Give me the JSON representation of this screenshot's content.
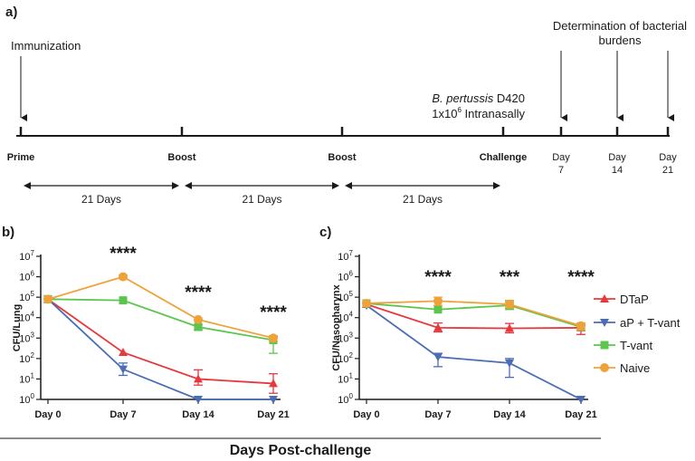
{
  "panel_a": {
    "label": "a)",
    "immunization": "Immunization",
    "determination": "Determination of bacterial",
    "determination2": "burdens",
    "species": "B. pertussis",
    "strain": " D420",
    "dose_prefix": "1x10",
    "dose_exp": "6",
    "dose_suffix": " Intranasally",
    "events": [
      {
        "label": "Prime"
      },
      {
        "label": "Boost"
      },
      {
        "label": "Boost"
      },
      {
        "label": "Challenge"
      }
    ],
    "days": [
      {
        "line1": "Day",
        "line2": "7"
      },
      {
        "line1": "Day",
        "line2": "14"
      },
      {
        "line1": "Day",
        "line2": "21"
      }
    ],
    "intervals": [
      "21 Days",
      "21 Days",
      "21 Days"
    ]
  },
  "shared_xlabel": "Days Post-challenge",
  "legend": [
    {
      "name": "DTaP",
      "color": "#e8383d",
      "marker": "triangle-up"
    },
    {
      "name": "aP + T-vant",
      "color": "#4a6db5",
      "marker": "triangle-down"
    },
    {
      "name": "T-vant",
      "color": "#5cc54e",
      "marker": "square"
    },
    {
      "name": "Naive",
      "color": "#f0a23a",
      "marker": "circle"
    }
  ],
  "chart_data": [
    {
      "panel": "b)",
      "type": "line",
      "ylabel": "CFU/Lung",
      "yscale": "log10",
      "ylim_exp": [
        0,
        7
      ],
      "categories": [
        "Day 0",
        "Day 7",
        "Day 14",
        "Day 21"
      ],
      "significance": [
        "",
        "****",
        "****",
        "****"
      ],
      "series": [
        {
          "name": "DTaP",
          "color": "#e8383d",
          "marker": "triangle-up",
          "values": [
            80000,
            200,
            10,
            6
          ],
          "err_hi": [
            null,
            null,
            28,
            18
          ],
          "err_lo": [
            null,
            null,
            5,
            2
          ]
        },
        {
          "name": "aP + T-vant",
          "color": "#4a6db5",
          "marker": "triangle-down",
          "values": [
            80000,
            30,
            1,
            1
          ],
          "err_hi": [
            null,
            60,
            null,
            null
          ],
          "err_lo": [
            null,
            15,
            null,
            null
          ]
        },
        {
          "name": "T-vant",
          "color": "#5cc54e",
          "marker": "square",
          "values": [
            80000,
            70000,
            3500,
            800
          ],
          "err_hi": [
            null,
            null,
            4500,
            1200
          ],
          "err_lo": [
            null,
            null,
            2500,
            180
          ]
        },
        {
          "name": "Naive",
          "color": "#f0a23a",
          "marker": "circle",
          "values": [
            80000,
            1000000,
            8000,
            1000
          ],
          "err_hi": [
            null,
            1200000,
            null,
            1300
          ],
          "err_lo": [
            null,
            800000,
            null,
            700
          ]
        }
      ]
    },
    {
      "panel": "c)",
      "type": "line",
      "ylabel": "CFU/Nasopharynx",
      "yscale": "log10",
      "ylim_exp": [
        0,
        7
      ],
      "categories": [
        "Day 0",
        "Day 7",
        "Day 14",
        "Day 21"
      ],
      "significance": [
        "",
        "****",
        "***",
        "****"
      ],
      "series": [
        {
          "name": "DTaP",
          "color": "#e8383d",
          "marker": "triangle-up",
          "values": [
            45000,
            3200,
            3000,
            3200
          ],
          "err_hi": [
            null,
            5500,
            5200,
            4500
          ],
          "err_lo": [
            null,
            2000,
            1800,
            1500
          ]
        },
        {
          "name": "aP + T-vant",
          "color": "#4a6db5",
          "marker": "triangle-down",
          "values": [
            40000,
            120,
            60,
            1
          ],
          "err_hi": [
            null,
            180,
            100,
            null
          ],
          "err_lo": [
            null,
            40,
            12,
            null
          ]
        },
        {
          "name": "T-vant",
          "color": "#5cc54e",
          "marker": "square",
          "values": [
            50000,
            25000,
            40000,
            3500
          ],
          "err_hi": [
            null,
            null,
            60000,
            4500
          ],
          "err_lo": [
            null,
            null,
            25000,
            2500
          ]
        },
        {
          "name": "Naive",
          "color": "#f0a23a",
          "marker": "circle",
          "values": [
            50000,
            65000,
            45000,
            4000
          ],
          "err_hi": [
            null,
            100000,
            70000,
            5500
          ],
          "err_lo": [
            null,
            40000,
            30000,
            2500
          ]
        }
      ]
    }
  ]
}
